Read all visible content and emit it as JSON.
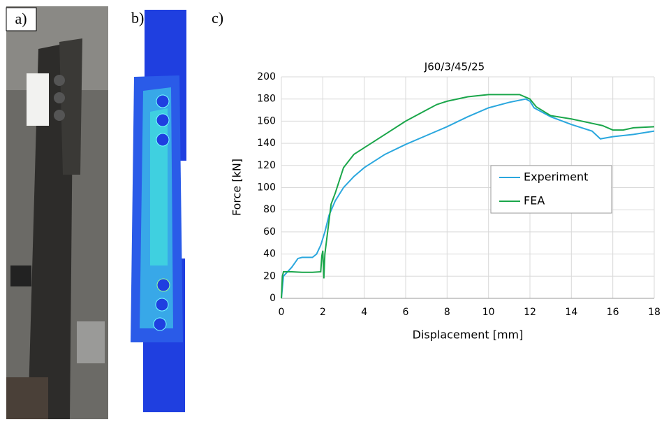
{
  "panel_labels": [
    "a)",
    "b)",
    "c)"
  ],
  "chart_data": {
    "type": "line",
    "title": "J60/3/45/25",
    "x_label": "Displacement [mm]",
    "y_label": "Force [kN]",
    "xlim": [
      0,
      18
    ],
    "xticks": [
      0,
      2,
      4,
      6,
      8,
      10,
      12,
      14,
      16,
      18
    ],
    "ylim": [
      0,
      200
    ],
    "yticks": [
      0,
      20,
      40,
      60,
      80,
      100,
      120,
      140,
      160,
      180,
      200
    ],
    "grid": true,
    "legend": "center-right",
    "series": [
      {
        "name": "Experiment",
        "color": "#2aa7de",
        "x": [
          0,
          0.1,
          0.3,
          0.5,
          0.8,
          1.0,
          1.5,
          1.7,
          1.9,
          2.1,
          2.3,
          2.6,
          3,
          3.5,
          4,
          5,
          6,
          7,
          8,
          9,
          10,
          11,
          11.8,
          12,
          12.2,
          13,
          14,
          15,
          15.4,
          16,
          17,
          18
        ],
        "values": [
          0,
          20,
          24,
          28,
          36,
          37,
          37,
          40,
          48,
          60,
          75,
          88,
          100,
          110,
          118,
          130,
          139,
          147,
          155,
          164,
          172,
          177,
          180,
          178,
          172,
          164,
          157,
          151,
          144,
          146,
          148,
          151
        ]
      },
      {
        "name": "FEA",
        "color": "#1aa64a",
        "x": [
          0,
          0.05,
          0.1,
          0.5,
          1,
          1.5,
          1.9,
          1.95,
          2.0,
          2.05,
          2.1,
          2.3,
          2.4,
          2.6,
          3,
          3.5,
          4,
          5,
          6,
          7,
          7.5,
          8,
          9,
          10,
          11,
          11.5,
          12,
          12.3,
          13,
          14,
          15,
          15.5,
          16,
          16.5,
          17,
          18
        ],
        "values": [
          0,
          20,
          24,
          24,
          23.5,
          23.5,
          24,
          38,
          43,
          18,
          40,
          70,
          85,
          95,
          118,
          130,
          136,
          148,
          160,
          170,
          175,
          178,
          182,
          184,
          184,
          184,
          180,
          173,
          165,
          162,
          158,
          156,
          152,
          152,
          154,
          155
        ]
      }
    ]
  }
}
